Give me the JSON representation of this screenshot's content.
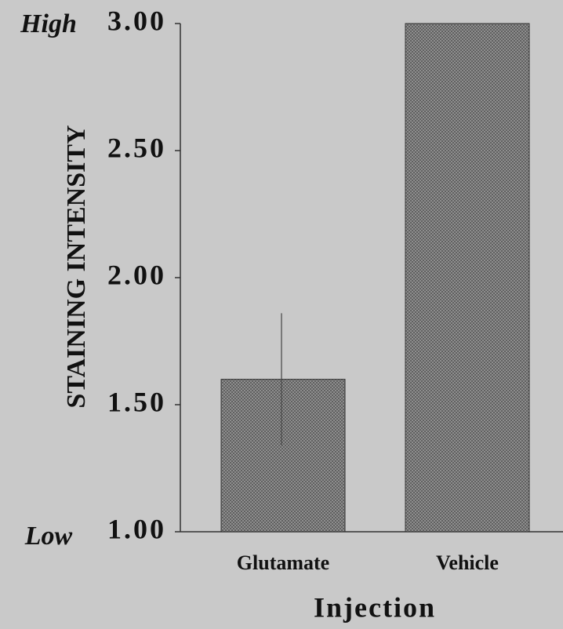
{
  "chart_data": {
    "type": "bar",
    "y_label": "STAINING INTENSITY",
    "x_label": "Injection",
    "annotations": [
      "High",
      "Low"
    ],
    "categories": [
      "Glutamate",
      "Vehicle"
    ],
    "values": [
      1.6,
      3.0
    ],
    "errors": [
      0.26,
      null
    ],
    "color": "#8a8a8a",
    "ylim": [
      1,
      3
    ],
    "yticks": [
      {
        "value": 1,
        "label": "1.00"
      },
      {
        "value": 1.5,
        "label": "1.50"
      },
      {
        "value": 2,
        "label": "2.00"
      },
      {
        "value": 2.5,
        "label": "2.50"
      },
      {
        "value": 3,
        "label": "3.00"
      }
    ],
    "grid": false
  }
}
